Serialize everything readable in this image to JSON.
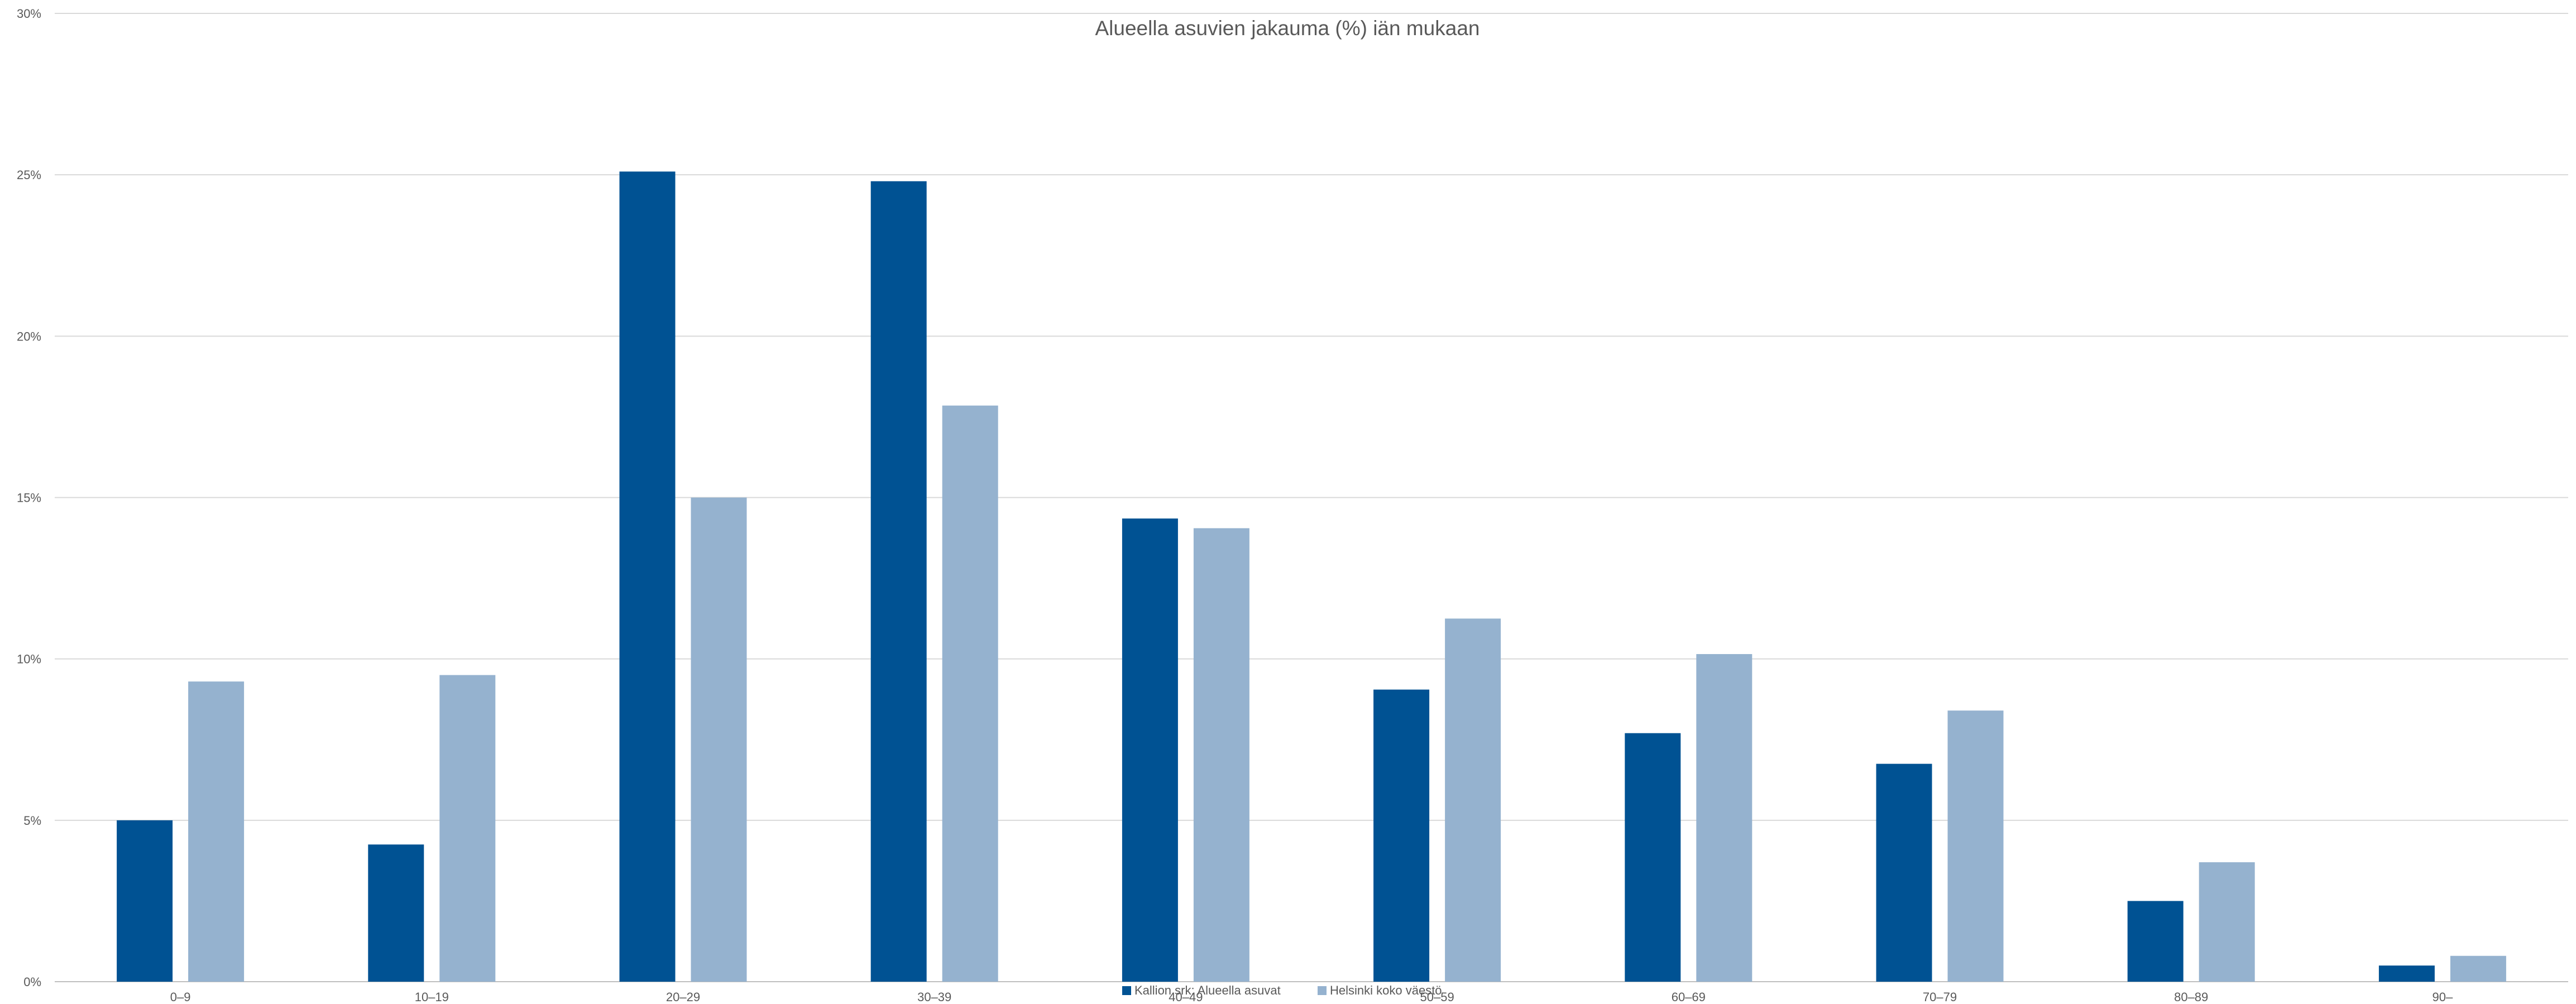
{
  "chart_data": {
    "type": "bar",
    "title": "Alueella asuvien jakauma (%) iän mukaan",
    "xlabel": "",
    "ylabel": "",
    "categories": [
      "0–9",
      "10–19",
      "20–29",
      "30–39",
      "40–49",
      "50–59",
      "60–69",
      "70–79",
      "80–89",
      "90–"
    ],
    "series": [
      {
        "name": "Kallion srk: Alueella asuvat",
        "color": "#005293",
        "values": [
          5.0,
          4.25,
          25.1,
          24.8,
          14.35,
          9.05,
          7.7,
          6.75,
          2.5,
          0.5
        ]
      },
      {
        "name": "Helsinki koko väestö",
        "color": "#95b2cf",
        "values": [
          9.3,
          9.5,
          15.0,
          17.85,
          14.05,
          11.25,
          10.15,
          8.4,
          3.7,
          0.8
        ]
      }
    ],
    "ylim": [
      0,
      30
    ],
    "yticks": [
      0,
      5,
      10,
      15,
      20,
      25,
      30
    ],
    "ytick_labels": [
      "0%",
      "5%",
      "10%",
      "15%",
      "20%",
      "25%",
      "30%"
    ],
    "grid": true,
    "legend_position": "bottom"
  }
}
